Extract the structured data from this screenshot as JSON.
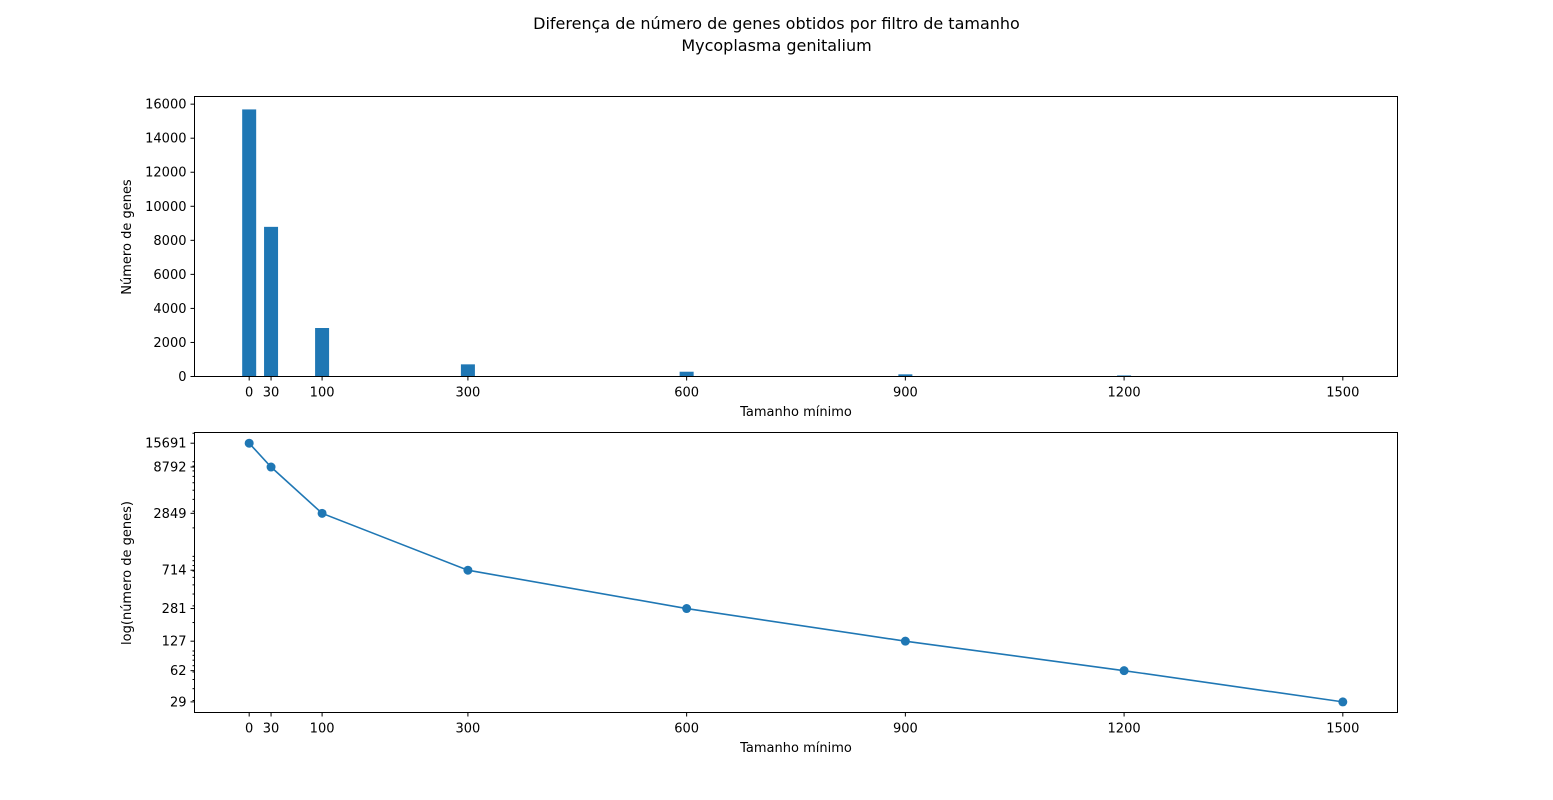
{
  "figure": {
    "title": "Diferença de número de genes obtidos por filtro de tamanho",
    "subtitle": "Mycoplasma genitalium"
  },
  "chart_data": [
    {
      "type": "bar",
      "categories": [
        "0",
        "30",
        "100",
        "300",
        "600",
        "900",
        "1200",
        "1500"
      ],
      "x": [
        0,
        30,
        100,
        300,
        600,
        900,
        1200,
        1500
      ],
      "values": [
        15691,
        8792,
        2849,
        714,
        281,
        127,
        62,
        29
      ],
      "xlabel": "Tamanho mínimo",
      "ylabel": "Número de genes",
      "xlim": [
        -75,
        1575
      ],
      "ylim": [
        0,
        16450
      ],
      "x_ticks": [
        0,
        30,
        100,
        300,
        600,
        900,
        1200,
        1500
      ],
      "y_ticks": [
        0,
        2000,
        4000,
        6000,
        8000,
        10000,
        12000,
        14000,
        16000
      ],
      "color": "#1f77b4",
      "grid": false
    },
    {
      "type": "line",
      "x": [
        0,
        30,
        100,
        300,
        600,
        900,
        1200,
        1500
      ],
      "values": [
        15691,
        8792,
        2849,
        714,
        281,
        127,
        62,
        29
      ],
      "xlabel": "Tamanho mínimo",
      "ylabel": "log(número de genes)",
      "yscale": "log",
      "xlim": [
        -75,
        1575
      ],
      "ylim": [
        22.4,
        20362
      ],
      "x_ticks": [
        0,
        30,
        100,
        300,
        600,
        900,
        1200,
        1500
      ],
      "y_ticks": [
        29,
        62,
        127,
        281,
        714,
        2849,
        8792,
        15691
      ],
      "marker": "circle",
      "color": "#1f77b4",
      "grid": false
    }
  ]
}
